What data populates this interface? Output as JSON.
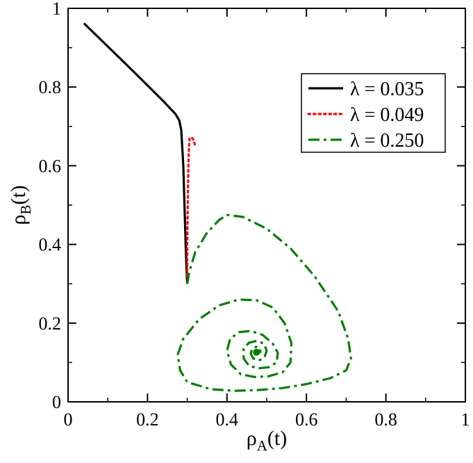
{
  "chart_data": {
    "type": "line",
    "xlabel": "ρ",
    "xlabel_sub": "A",
    "xlabel_tail": "(t)",
    "ylabel": "ρ",
    "ylabel_sub": "B",
    "ylabel_tail": "(t)",
    "xlim": [
      0,
      1
    ],
    "ylim": [
      0,
      1
    ],
    "xticks": [
      0,
      0.2,
      0.4,
      0.6,
      0.8,
      1
    ],
    "yticks": [
      0,
      0.2,
      0.4,
      0.6,
      0.8,
      1
    ],
    "xtick_labels": [
      "0",
      "0.2",
      "0.4",
      "0.6",
      "0.8",
      "1"
    ],
    "ytick_labels": [
      "0",
      "0.2",
      "0.4",
      "0.6",
      "0.8",
      "1"
    ],
    "grid": false,
    "legend_position": "top-right",
    "series": [
      {
        "name": "λ = 0.035",
        "color": "#000000",
        "style": "solid",
        "x": [
          0.04,
          0.1,
          0.15,
          0.2,
          0.24,
          0.27,
          0.28,
          0.285,
          0.29,
          0.293,
          0.296,
          0.298,
          0.3
        ],
        "y": [
          0.962,
          0.903,
          0.854,
          0.804,
          0.764,
          0.732,
          0.715,
          0.69,
          0.6,
          0.5,
          0.4,
          0.34,
          0.3
        ]
      },
      {
        "name": "λ = 0.049",
        "color": "#ff0000",
        "style": "dotted",
        "x": [
          0.3,
          0.3,
          0.301,
          0.302,
          0.303,
          0.304,
          0.305,
          0.306,
          0.309,
          0.313,
          0.316,
          0.318,
          0.32
        ],
        "y": [
          0.32,
          0.4,
          0.48,
          0.55,
          0.6,
          0.64,
          0.66,
          0.67,
          0.672,
          0.67,
          0.665,
          0.658,
          0.65
        ]
      },
      {
        "name": "λ = 0.250",
        "color": "#008000",
        "style": "dashdot",
        "x": [
          0.3,
          0.305,
          0.32,
          0.35,
          0.38,
          0.4,
          0.44,
          0.5,
          0.56,
          0.62,
          0.68,
          0.705,
          0.712,
          0.7,
          0.66,
          0.6,
          0.54,
          0.48,
          0.42,
          0.36,
          0.3,
          0.282,
          0.276,
          0.29,
          0.33,
          0.38,
          0.43,
          0.475,
          0.515,
          0.545,
          0.562,
          0.56,
          0.54,
          0.505,
          0.47,
          0.435,
          0.41,
          0.4,
          0.408,
          0.43,
          0.46,
          0.49,
          0.515,
          0.528,
          0.525,
          0.505,
          0.478,
          0.455,
          0.442,
          0.442,
          0.455,
          0.475,
          0.493,
          0.5,
          0.494,
          0.48,
          0.466,
          0.46,
          0.463,
          0.474,
          0.483,
          0.484,
          0.478,
          0.472,
          0.474
        ],
        "y": [
          0.3,
          0.33,
          0.38,
          0.43,
          0.462,
          0.475,
          0.47,
          0.44,
          0.39,
          0.32,
          0.23,
          0.16,
          0.11,
          0.08,
          0.06,
          0.045,
          0.035,
          0.03,
          0.028,
          0.032,
          0.05,
          0.08,
          0.12,
          0.16,
          0.21,
          0.245,
          0.26,
          0.258,
          0.24,
          0.2,
          0.15,
          0.1,
          0.075,
          0.065,
          0.063,
          0.07,
          0.095,
          0.13,
          0.16,
          0.177,
          0.18,
          0.17,
          0.148,
          0.125,
          0.1,
          0.088,
          0.085,
          0.092,
          0.11,
          0.135,
          0.15,
          0.155,
          0.148,
          0.13,
          0.112,
          0.105,
          0.11,
          0.122,
          0.135,
          0.14,
          0.136,
          0.127,
          0.122,
          0.124,
          0.126
        ]
      }
    ]
  }
}
